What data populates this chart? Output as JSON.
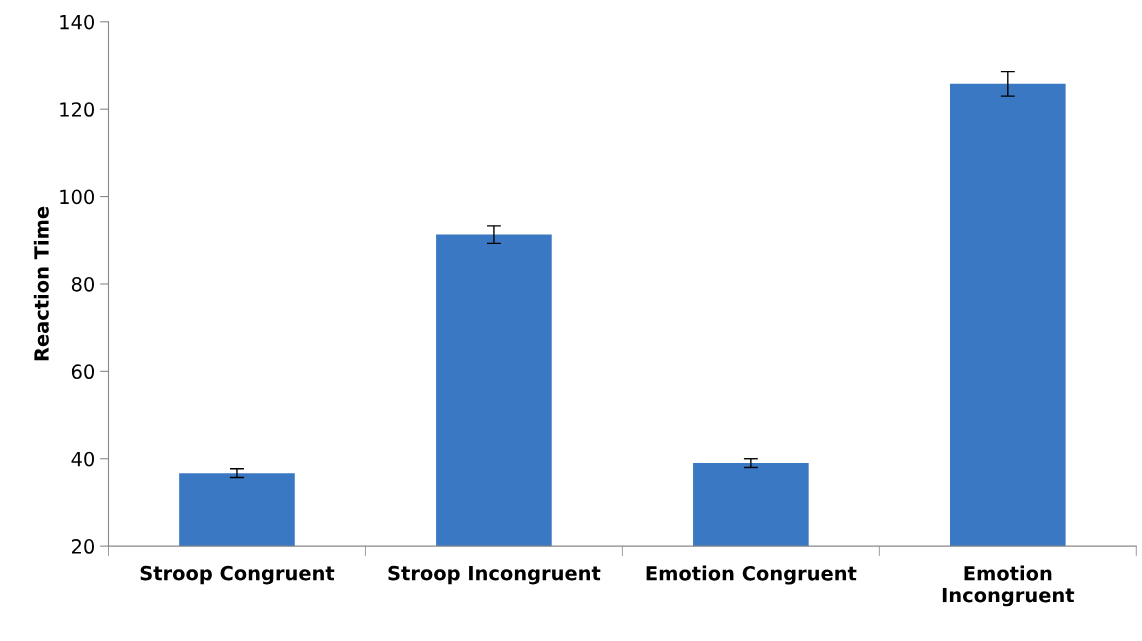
{
  "chart_data": {
    "type": "bar",
    "ylabel": "Reaction Time",
    "categories": [
      "Stroop Congruent",
      "Stroop Incongruent",
      "Emotion Congruent",
      "Emotion\nIncongruent"
    ],
    "values": [
      36.7,
      91.3,
      39,
      125.8
    ],
    "errors": [
      1,
      2,
      1,
      2.8
    ],
    "color": "#3a78c4",
    "ylim": [
      20,
      140
    ],
    "yticks": [
      20,
      40,
      60,
      80,
      100,
      120,
      140
    ],
    "grid": false,
    "legend": false
  }
}
